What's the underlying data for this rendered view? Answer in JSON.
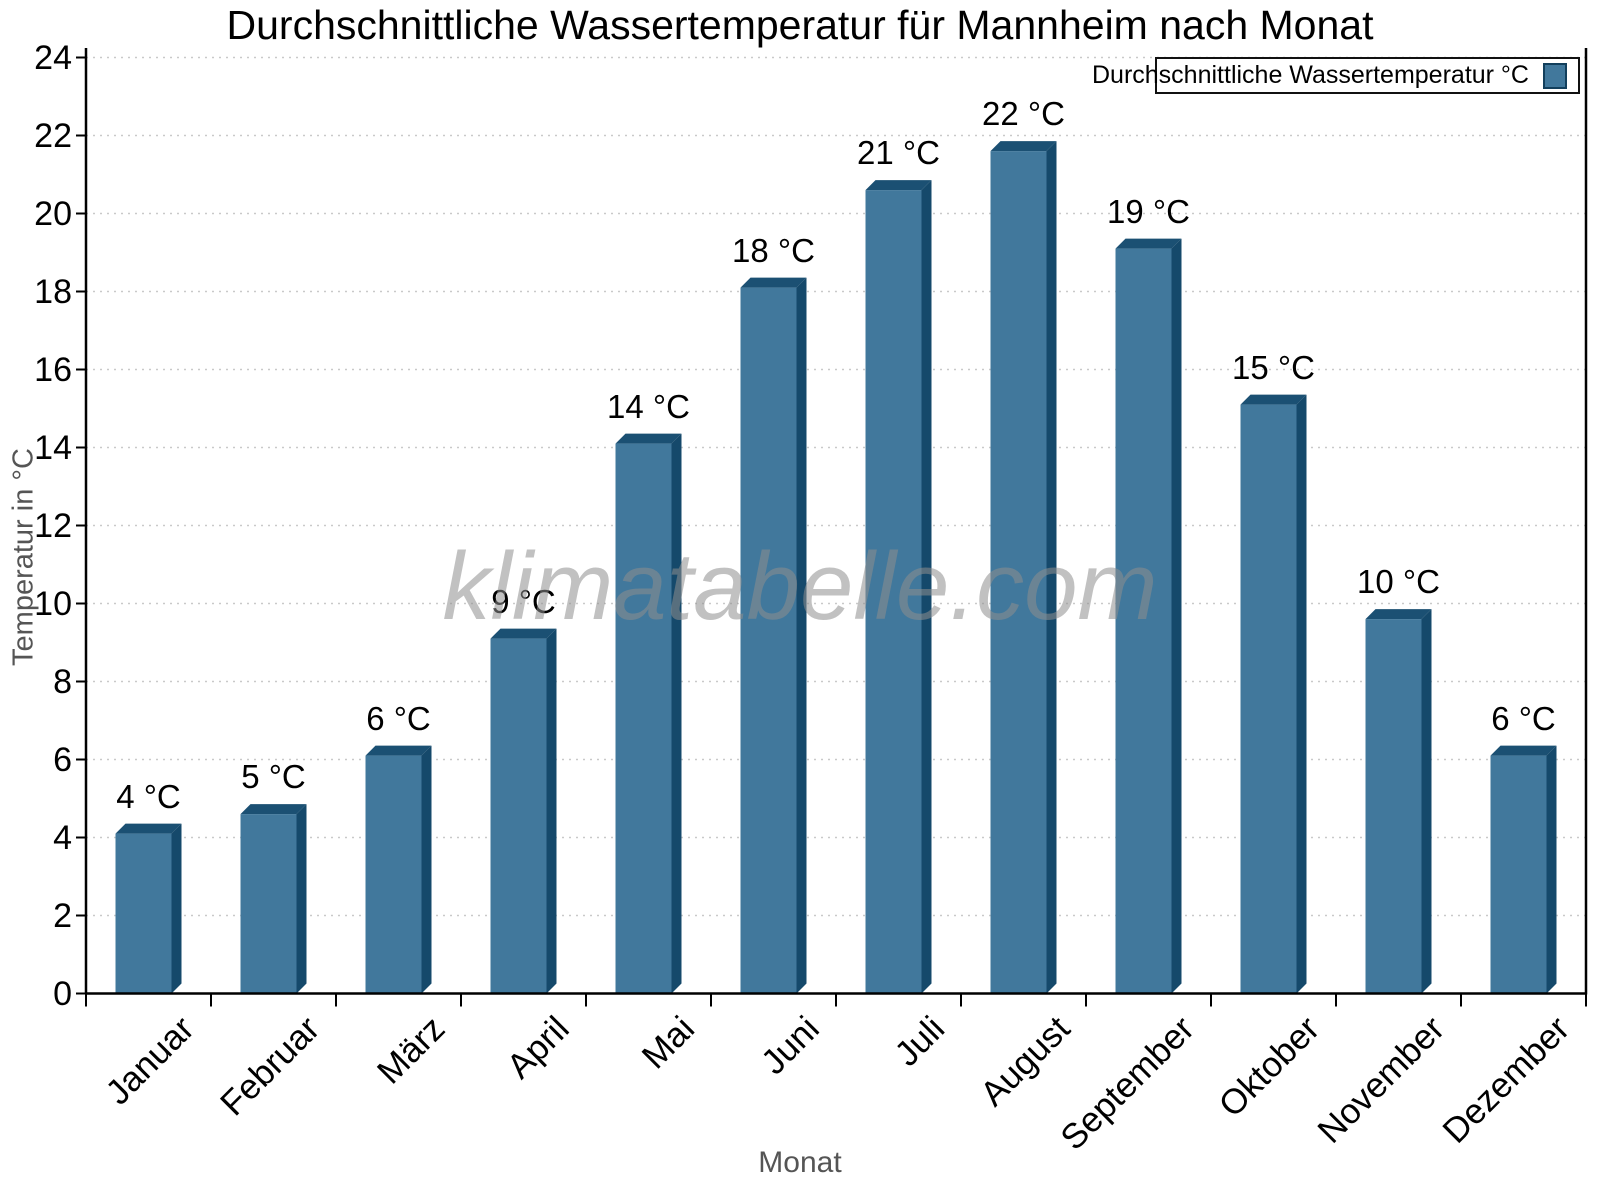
{
  "title": "Durchschnittliche Wassertemperatur für Mannheim nach Monat",
  "watermark": {
    "text": "klimatabelle.com"
  },
  "legend": {
    "label": "Durchschnittliche Wassertemperatur °C"
  },
  "chart_data": {
    "type": "bar",
    "title": "Durchschnittliche Wassertemperatur für Mannheim nach Monat",
    "xlabel": "Monat",
    "ylabel": "Temperatur in °C",
    "categories": [
      "Januar",
      "Februar",
      "März",
      "April",
      "Mai",
      "Juni",
      "Juli",
      "August",
      "September",
      "Oktober",
      "November",
      "Dezember"
    ],
    "values": [
      4.1,
      4.6,
      6.1,
      9.1,
      14.1,
      18.1,
      20.6,
      21.6,
      19.1,
      15.1,
      9.6,
      6.1
    ],
    "value_labels": [
      "4 °C",
      "5 °C",
      "6 °C",
      "9 °C",
      "14 °C",
      "18 °C",
      "21 °C",
      "22 °C",
      "19 °C",
      "15 °C",
      "10 °C",
      "6 °C"
    ],
    "series_name": "Durchschnittliche Wassertemperatur °C",
    "ylim": [
      0,
      24
    ],
    "ytick_step": 2,
    "yticks": [
      0,
      2,
      4,
      6,
      8,
      10,
      12,
      14,
      16,
      18,
      20,
      22,
      24
    ],
    "grid": true,
    "gridline_style": "dotted",
    "legend_position": "top-right",
    "colors": {
      "bar_front": "#41789C",
      "bar_side": "#15496B",
      "bar_top": "#1B5073",
      "axis_line": "#000000",
      "gridline": "#c9c9c9",
      "axis_title_text": "#555555",
      "tick_label_text": "#000000",
      "watermark_text": "#8f8f8f"
    }
  }
}
